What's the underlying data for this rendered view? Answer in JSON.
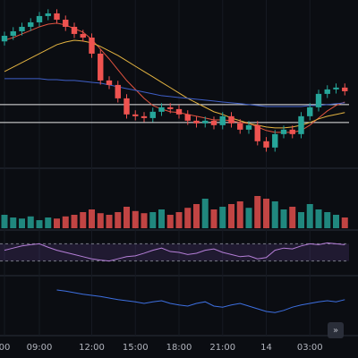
{
  "chart_data": {
    "type": "candlestick",
    "categories": [
      "00",
      null,
      null,
      null,
      "09:00",
      null,
      null,
      null,
      null,
      null,
      "12:00",
      null,
      null,
      null,
      null,
      "15:00",
      null,
      null,
      null,
      null,
      "18:00",
      null,
      null,
      null,
      null,
      "21:00",
      null,
      null,
      null,
      null,
      "14",
      null,
      null,
      null,
      null,
      "03:00",
      null,
      null,
      null,
      null
    ],
    "open": [
      75,
      78.4,
      81.1,
      83.8,
      86.5,
      90.3,
      91.9,
      88.1,
      83.8,
      79.5,
      77.3,
      67.6,
      51.4,
      48.7,
      40.6,
      30.9,
      29.8,
      28.7,
      32.5,
      35.2,
      34.1,
      30.9,
      27.1,
      25.5,
      27.1,
      24.4,
      29.8,
      25.5,
      21.7,
      24.4,
      14.7,
      10.9,
      19,
      21.7,
      19,
      29.8,
      35.2,
      43.3,
      46,
      47.1
    ],
    "high": [
      80.9,
      83.6,
      86.3,
      89,
      92.8,
      94.4,
      94.4,
      90.6,
      86.3,
      82,
      79.8,
      70.1,
      53.9,
      51.2,
      43.1,
      33.4,
      32.3,
      35,
      37.7,
      37.7,
      36.6,
      33.4,
      29.6,
      29.6,
      29.6,
      32.3,
      32.3,
      28,
      26.9,
      26.9,
      17.2,
      21.5,
      24.2,
      24.2,
      32.3,
      37.7,
      45.8,
      48.5,
      49.6,
      49.6
    ],
    "low": [
      72.5,
      75.9,
      78.6,
      81.3,
      84,
      87.8,
      85.6,
      81.3,
      77,
      74.8,
      65.1,
      48.9,
      46.2,
      38.1,
      28.4,
      27.3,
      26.2,
      26.2,
      30,
      31.6,
      28.4,
      24.6,
      23,
      23,
      21.9,
      21.9,
      23,
      19.2,
      19.2,
      12.2,
      8.4,
      8.4,
      16.5,
      16.5,
      16.5,
      27.3,
      32.7,
      40.8,
      43.5,
      42.4
    ],
    "close": [
      78.4,
      81.1,
      83.8,
      86.5,
      90.3,
      91.9,
      88.1,
      83.8,
      79.5,
      77.3,
      67.6,
      51.4,
      48.7,
      40.6,
      30.9,
      29.8,
      28.7,
      32.5,
      35.2,
      34.1,
      30.9,
      27.1,
      25.5,
      27.1,
      24.4,
      29.8,
      25.5,
      21.7,
      24.4,
      14.7,
      10.9,
      19,
      21.7,
      19,
      29.8,
      35.2,
      43.3,
      46,
      47.1,
      44.9
    ],
    "up_color": "#26a69a",
    "down_color": "#ef5350",
    "ylim": [
      0,
      100
    ],
    "series": [
      {
        "color": "#e0533f",
        "values": [
          75.7,
          77.3,
          79.5,
          81.6,
          83.8,
          85.4,
          86,
          84.9,
          82.7,
          80.6,
          76.2,
          70.3,
          64.4,
          57.9,
          51.4,
          46,
          40.6,
          36.3,
          34.1,
          32.5,
          32,
          30.9,
          29.8,
          28.7,
          27.6,
          27.6,
          27.1,
          26,
          25.5,
          23.3,
          21.2,
          20.1,
          20.1,
          20.1,
          21.2,
          24.4,
          28.7,
          33,
          36.3,
          38.4
        ]
      },
      {
        "color": "#e3b341",
        "values": [
          56.8,
          59.5,
          62.2,
          64.9,
          67.6,
          70.3,
          73,
          74.6,
          75.7,
          75.2,
          74.1,
          71.9,
          69.2,
          66.5,
          63.3,
          60,
          56.8,
          53.6,
          50.3,
          47.1,
          43.8,
          40.6,
          37.9,
          35.2,
          32.5,
          30.9,
          28.7,
          27.1,
          25.5,
          24.4,
          23.3,
          22.8,
          22.8,
          23.3,
          24.4,
          26,
          28.2,
          29.8,
          30.9,
          32
        ]
      },
      {
        "color": "#3f5fc8",
        "values": [
          52.5,
          52.5,
          52.5,
          52.5,
          52.5,
          51.9,
          51.9,
          51.4,
          51.4,
          50.9,
          50.3,
          49.8,
          48.7,
          47.6,
          46.5,
          45.5,
          44.4,
          43.3,
          42.2,
          41.7,
          41.1,
          40.6,
          40.1,
          39.5,
          39,
          38.4,
          37.9,
          37.4,
          36.8,
          36.3,
          35.7,
          35.7,
          35.7,
          35.7,
          35.7,
          36.3,
          36.3,
          36.8,
          37.4,
          37.9
        ]
      }
    ],
    "price_lines": [
      36.8,
      26
    ],
    "volume": {
      "ylim": [
        0,
        100
      ],
      "values": [
        25,
        20,
        18,
        22,
        15,
        20,
        18,
        22,
        25,
        30,
        35,
        28,
        25,
        30,
        40,
        32,
        28,
        30,
        35,
        25,
        30,
        38,
        45,
        55,
        35,
        40,
        45,
        50,
        38,
        60,
        55,
        50,
        35,
        40,
        30,
        45,
        35,
        30,
        25,
        20
      ]
    },
    "rsi": {
      "ylim": [
        0,
        100
      ],
      "band": [
        30,
        70
      ],
      "color": "#b57fd8",
      "values": [
        55,
        60,
        65,
        68,
        70,
        62,
        55,
        50,
        45,
        40,
        35,
        32,
        30,
        35,
        40,
        42,
        48,
        55,
        60,
        52,
        50,
        45,
        48,
        55,
        58,
        50,
        45,
        40,
        42,
        35,
        38,
        55,
        60,
        58,
        65,
        70,
        68,
        72,
        70,
        68
      ]
    },
    "lower": {
      "ylim": [
        0,
        100
      ],
      "color": "#3d6fe0",
      "values": [
        null,
        null,
        null,
        null,
        null,
        null,
        80,
        78,
        75,
        72,
        70,
        68,
        65,
        62,
        60,
        58,
        55,
        58,
        60,
        55,
        52,
        50,
        55,
        58,
        50,
        48,
        52,
        55,
        50,
        45,
        40,
        38,
        42,
        48,
        52,
        55,
        58,
        60,
        58,
        62
      ]
    }
  },
  "ui": {
    "scroll_button": "»"
  }
}
